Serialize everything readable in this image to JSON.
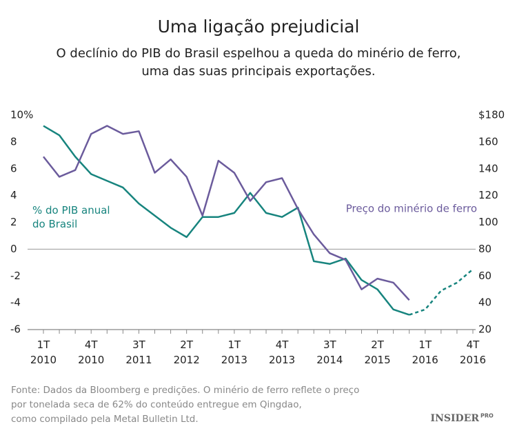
{
  "chart_data": {
    "type": "line",
    "title": "Uma ligação prejudicial",
    "subtitle": [
      "O declínio do PIB do Brasil espelhou a queda do minério de ferro,",
      "uma das suas principais exportações."
    ],
    "categories": [
      "1T 2010",
      null,
      null,
      "4T 2010",
      null,
      null,
      "3T 2011",
      null,
      null,
      "2T 2012",
      null,
      null,
      "1T 2013",
      null,
      null,
      "4T 2013",
      null,
      null,
      "3T 2014",
      null,
      null,
      "2T 2015",
      null,
      null,
      "1T 2016",
      null,
      null,
      "4T 2016"
    ],
    "series": [
      {
        "name": "% do PIB anual do Brasil",
        "color": "#17847e",
        "axis": "y",
        "dashed_from_index": 23,
        "values": [
          9.2,
          8.5,
          6.9,
          5.6,
          5.1,
          4.6,
          3.4,
          2.5,
          1.6,
          0.9,
          2.4,
          2.4,
          2.7,
          4.2,
          2.7,
          2.4,
          3.1,
          -0.9,
          -1.1,
          -0.7,
          -2.3,
          -3.0,
          -4.5,
          -4.9,
          -4.5,
          -3.1,
          -2.5,
          -1.5
        ]
      },
      {
        "name": "Preço do minério de ferro",
        "color": "#6b5b9c",
        "axis": "y2",
        "values": [
          149,
          134,
          139,
          166,
          172,
          166,
          168,
          137,
          147,
          134,
          105,
          146,
          137,
          116,
          130,
          133,
          110,
          91,
          77,
          72,
          50,
          58,
          55,
          42,
          null,
          null,
          null,
          null
        ]
      }
    ],
    "ylim": [
      -6,
      10
    ],
    "yticks": [
      {
        "value": 10,
        "label": "10%"
      },
      8,
      6,
      4,
      2,
      0,
      -2,
      -4,
      -6
    ],
    "y2lim": [
      20,
      180
    ],
    "y2ticks": [
      {
        "value": 180,
        "label": "$180"
      },
      160,
      140,
      120,
      100,
      80,
      60,
      40,
      20
    ],
    "grid": false,
    "source": [
      "Fonte: Dados da Bloomberg e predições. O minério de ferro reflete o preço",
      "por tonelada seca de 62% do conteúdo entregue em Qingdao,",
      "como compilado pela Metal Bulletin Ltd."
    ],
    "logo": {
      "main": "INSIDER",
      "sub": "PRO"
    }
  }
}
